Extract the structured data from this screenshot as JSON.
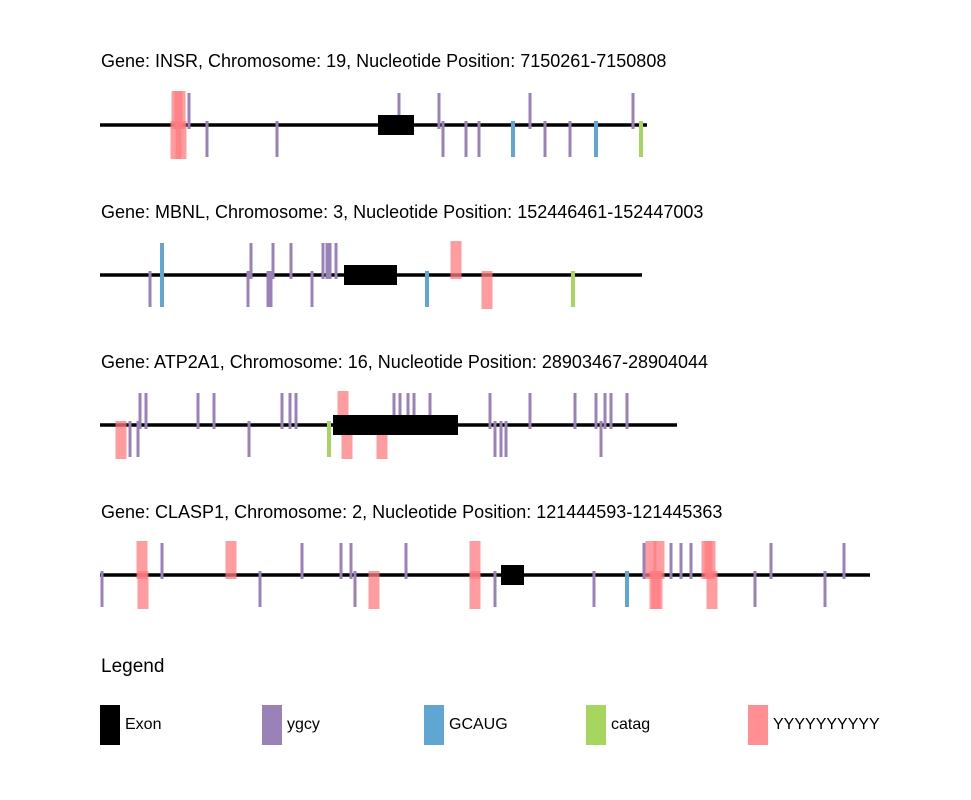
{
  "colors": {
    "exon": "#000000",
    "ygcy": "#9a82b8",
    "GCAUG": "#5fa6d2",
    "catag": "#a6d65e",
    "YYYYYYYYYY": "#ff7b80"
  },
  "genes": [
    {
      "title": "Gene: INSR, Chromosome: 19, Nucleotide Position: 7150261-7150808",
      "start": 7150261,
      "end": 7150808,
      "exon": [
        7150539,
        7150575
      ],
      "motifs": [
        {
          "type": "YYYYYYYYYY",
          "pos": 7150338,
          "strand": "+"
        },
        {
          "type": "YYYYYYYYYY",
          "pos": 7150341,
          "strand": "+"
        },
        {
          "type": "YYYYYYYYYY",
          "pos": 7150337,
          "strand": "-"
        },
        {
          "type": "YYYYYYYYYY",
          "pos": 7150342,
          "strand": "-"
        },
        {
          "type": "ygcy",
          "pos": 7150350,
          "strand": "+"
        },
        {
          "type": "ygcy",
          "pos": 7150368,
          "strand": "-"
        },
        {
          "type": "ygcy",
          "pos": 7150438,
          "strand": "-"
        },
        {
          "type": "ygcy",
          "pos": 7150560,
          "strand": "+"
        },
        {
          "type": "ygcy",
          "pos": 7150600,
          "strand": "+"
        },
        {
          "type": "ygcy",
          "pos": 7150604,
          "strand": "-"
        },
        {
          "type": "ygcy",
          "pos": 7150627,
          "strand": "-"
        },
        {
          "type": "ygcy",
          "pos": 7150640,
          "strand": "-"
        },
        {
          "type": "GCAUG",
          "pos": 7150674,
          "strand": "-"
        },
        {
          "type": "ygcy",
          "pos": 7150691,
          "strand": "+"
        },
        {
          "type": "ygcy",
          "pos": 7150706,
          "strand": "-"
        },
        {
          "type": "ygcy",
          "pos": 7150731,
          "strand": "-"
        },
        {
          "type": "GCAUG",
          "pos": 7150757,
          "strand": "-"
        },
        {
          "type": "ygcy",
          "pos": 7150794,
          "strand": "+"
        },
        {
          "type": "catag",
          "pos": 7150802,
          "strand": "-"
        }
      ]
    },
    {
      "title": "Gene: MBNL, Chromosome: 3, Nucleotide Position: 152446461-152447003",
      "start": 152446461,
      "end": 152447003,
      "exon": [
        152446705,
        152446758
      ],
      "motifs": [
        {
          "type": "ygcy",
          "pos": 152446511,
          "strand": "-"
        },
        {
          "type": "GCAUG",
          "pos": 152446523,
          "strand": "-"
        },
        {
          "type": "GCAUG",
          "pos": 152446523,
          "strand": "+"
        },
        {
          "type": "ygcy",
          "pos": 152446609,
          "strand": "-"
        },
        {
          "type": "ygcy",
          "pos": 152446612,
          "strand": "+"
        },
        {
          "type": "ygcy",
          "pos": 152446629,
          "strand": "-"
        },
        {
          "type": "ygcy",
          "pos": 152446632,
          "strand": "-"
        },
        {
          "type": "ygcy",
          "pos": 152446634,
          "strand": "+"
        },
        {
          "type": "ygcy",
          "pos": 152446652,
          "strand": "+"
        },
        {
          "type": "ygcy",
          "pos": 152446673,
          "strand": "-"
        },
        {
          "type": "ygcy",
          "pos": 152446684,
          "strand": "+"
        },
        {
          "type": "ygcy",
          "pos": 152446688,
          "strand": "+"
        },
        {
          "type": "ygcy",
          "pos": 152446691,
          "strand": "+"
        },
        {
          "type": "ygcy",
          "pos": 152446697,
          "strand": "+"
        },
        {
          "type": "GCAUG",
          "pos": 152446788,
          "strand": "-"
        },
        {
          "type": "YYYYYYYYYY",
          "pos": 152446817,
          "strand": "+"
        },
        {
          "type": "YYYYYYYYYY",
          "pos": 152446848,
          "strand": "-"
        },
        {
          "type": "catag",
          "pos": 152446934,
          "strand": "-"
        }
      ]
    },
    {
      "title": "Gene: ATP2A1, Chromosome: 16, Nucleotide Position: 28903467-28904044",
      "start": 28903467,
      "end": 28904044,
      "exon": [
        28903700,
        28903825
      ],
      "motifs": [
        {
          "type": "YYYYYYYYYY",
          "pos": 28903488,
          "strand": "-"
        },
        {
          "type": "ygcy",
          "pos": 28903497,
          "strand": "-"
        },
        {
          "type": "ygcy",
          "pos": 28903505,
          "strand": "-"
        },
        {
          "type": "ygcy",
          "pos": 28903507,
          "strand": "+"
        },
        {
          "type": "ygcy",
          "pos": 28903513,
          "strand": "+"
        },
        {
          "type": "ygcy",
          "pos": 28903565,
          "strand": "+"
        },
        {
          "type": "ygcy",
          "pos": 28903581,
          "strand": "+"
        },
        {
          "type": "ygcy",
          "pos": 28903616,
          "strand": "-"
        },
        {
          "type": "ygcy",
          "pos": 28903649,
          "strand": "+"
        },
        {
          "type": "ygcy",
          "pos": 28903657,
          "strand": "+"
        },
        {
          "type": "ygcy",
          "pos": 28903663,
          "strand": "+"
        },
        {
          "type": "catag",
          "pos": 28903696,
          "strand": "-"
        },
        {
          "type": "YYYYYYYYYY",
          "pos": 28903710,
          "strand": "+"
        },
        {
          "type": "YYYYYYYYYY",
          "pos": 28903714,
          "strand": "-"
        },
        {
          "type": "YYYYYYYYYY",
          "pos": 28903749,
          "strand": "-"
        },
        {
          "type": "ygcy",
          "pos": 28903761,
          "strand": "+"
        },
        {
          "type": "ygcy",
          "pos": 28903767,
          "strand": "+"
        },
        {
          "type": "ygcy",
          "pos": 28903775,
          "strand": "+"
        },
        {
          "type": "ygcy",
          "pos": 28903781,
          "strand": "+"
        },
        {
          "type": "ygcy",
          "pos": 28903797,
          "strand": "+"
        },
        {
          "type": "ygcy",
          "pos": 28903857,
          "strand": "+"
        },
        {
          "type": "ygcy",
          "pos": 28903862,
          "strand": "-"
        },
        {
          "type": "ygcy",
          "pos": 28903868,
          "strand": "-"
        },
        {
          "type": "ygcy",
          "pos": 28903873,
          "strand": "-"
        },
        {
          "type": "ygcy",
          "pos": 28903897,
          "strand": "+"
        },
        {
          "type": "ygcy",
          "pos": 28903942,
          "strand": "+"
        },
        {
          "type": "ygcy",
          "pos": 28903963,
          "strand": "+"
        },
        {
          "type": "ygcy",
          "pos": 28903968,
          "strand": "-"
        },
        {
          "type": "ygcy",
          "pos": 28903972,
          "strand": "+"
        },
        {
          "type": "ygcy",
          "pos": 28903978,
          "strand": "+"
        },
        {
          "type": "ygcy",
          "pos": 28903994,
          "strand": "+"
        }
      ]
    },
    {
      "title": "Gene: CLASP1, Chromosome: 2, Nucleotide Position: 121444593-121445363",
      "start": 121444593,
      "end": 121445363,
      "exon": [
        121444994,
        121445017
      ],
      "motifs": [
        {
          "type": "ygcy",
          "pos": 121444595,
          "strand": "-"
        },
        {
          "type": "YYYYYYYYYY",
          "pos": 121444635,
          "strand": "+"
        },
        {
          "type": "YYYYYYYYYY",
          "pos": 121444636,
          "strand": "-"
        },
        {
          "type": "ygcy",
          "pos": 121444655,
          "strand": "+"
        },
        {
          "type": "YYYYYYYYYY",
          "pos": 121444724,
          "strand": "+"
        },
        {
          "type": "ygcy",
          "pos": 121444753,
          "strand": "-"
        },
        {
          "type": "ygcy",
          "pos": 121444795,
          "strand": "+"
        },
        {
          "type": "ygcy",
          "pos": 121444834,
          "strand": "+"
        },
        {
          "type": "ygcy",
          "pos": 121444844,
          "strand": "+"
        },
        {
          "type": "ygcy",
          "pos": 121444848,
          "strand": "-"
        },
        {
          "type": "YYYYYYYYYY",
          "pos": 121444867,
          "strand": "-"
        },
        {
          "type": "ygcy",
          "pos": 121444899,
          "strand": "+"
        },
        {
          "type": "YYYYYYYYYY",
          "pos": 121444968,
          "strand": "+"
        },
        {
          "type": "YYYYYYYYYY",
          "pos": 121444968,
          "strand": "-"
        },
        {
          "type": "ygcy",
          "pos": 121444988,
          "strand": "-"
        },
        {
          "type": "ygcy",
          "pos": 121445087,
          "strand": "-"
        },
        {
          "type": "GCAUG",
          "pos": 121445120,
          "strand": "-"
        },
        {
          "type": "ygcy",
          "pos": 121445137,
          "strand": "+"
        },
        {
          "type": "YYYYYYYYYY",
          "pos": 121445144,
          "strand": "+"
        },
        {
          "type": "YYYYYYYYYY",
          "pos": 121445148,
          "strand": "-"
        },
        {
          "type": "YYYYYYYYYY",
          "pos": 121445152,
          "strand": "+"
        },
        {
          "type": "YYYYYYYYYY",
          "pos": 121445150,
          "strand": "-"
        },
        {
          "type": "ygcy",
          "pos": 121445164,
          "strand": "+"
        },
        {
          "type": "ygcy",
          "pos": 121445174,
          "strand": "+"
        },
        {
          "type": "ygcy",
          "pos": 121445184,
          "strand": "+"
        },
        {
          "type": "YYYYYYYYYY",
          "pos": 121445200,
          "strand": "+"
        },
        {
          "type": "YYYYYYYYYY",
          "pos": 121445205,
          "strand": "-"
        },
        {
          "type": "YYYYYYYYYY",
          "pos": 121445203,
          "strand": "+"
        },
        {
          "type": "ygcy",
          "pos": 121445248,
          "strand": "-"
        },
        {
          "type": "ygcy",
          "pos": 121445264,
          "strand": "+"
        },
        {
          "type": "ygcy",
          "pos": 121445318,
          "strand": "-"
        },
        {
          "type": "ygcy",
          "pos": 121445337,
          "strand": "+"
        }
      ]
    }
  ],
  "legend": {
    "title": "Legend",
    "items": [
      {
        "key": "exon",
        "label": "Exon"
      },
      {
        "key": "ygcy",
        "label": "ygcy"
      },
      {
        "key": "GCAUG",
        "label": "GCAUG"
      },
      {
        "key": "catag",
        "label": "catag"
      },
      {
        "key": "YYYYYYYYYY",
        "label": "YYYYYYYYYY"
      }
    ]
  }
}
